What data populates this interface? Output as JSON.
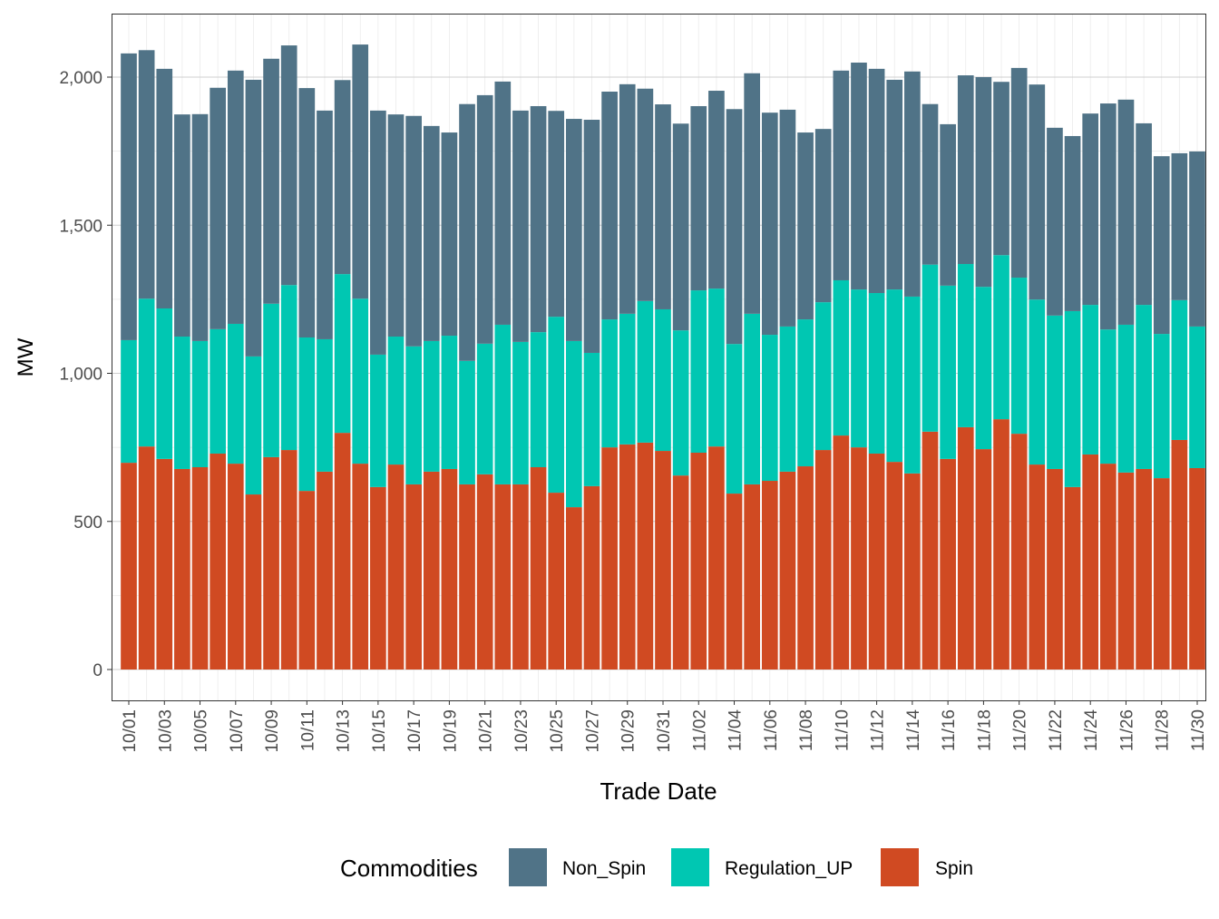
{
  "chart_data": {
    "type": "bar",
    "stacked": true,
    "xlabel": "Trade Date",
    "ylabel": "MW",
    "ylim": [
      0,
      2200
    ],
    "yticks": [
      0,
      500,
      1000,
      1500,
      2000
    ],
    "ytick_labels": [
      "0",
      "500",
      "1,000",
      "1,500",
      "2,000"
    ],
    "grid": true,
    "legend": {
      "title": "Commodities",
      "position": "bottom"
    },
    "categories": [
      "10/01",
      "10/02",
      "10/03",
      "10/04",
      "10/05",
      "10/06",
      "10/07",
      "10/08",
      "10/09",
      "10/10",
      "10/11",
      "10/12",
      "10/13",
      "10/14",
      "10/15",
      "10/16",
      "10/17",
      "10/18",
      "10/19",
      "10/20",
      "10/21",
      "10/22",
      "10/23",
      "10/24",
      "10/25",
      "10/26",
      "10/27",
      "10/28",
      "10/29",
      "10/30",
      "10/31",
      "11/01",
      "11/02",
      "11/03",
      "11/04",
      "11/05",
      "11/06",
      "11/07",
      "11/08",
      "11/09",
      "11/10",
      "11/11",
      "11/12",
      "11/13",
      "11/14",
      "11/15",
      "11/16",
      "11/17",
      "11/18",
      "11/19",
      "11/20",
      "11/21",
      "11/22",
      "11/23",
      "11/24",
      "11/25",
      "11/26",
      "11/27",
      "11/28",
      "11/29",
      "11/30"
    ],
    "xtick_labels": [
      "10/01",
      "10/03",
      "10/05",
      "10/07",
      "10/09",
      "10/11",
      "10/13",
      "10/15",
      "10/17",
      "10/19",
      "10/21",
      "10/23",
      "10/25",
      "10/27",
      "10/29",
      "10/31",
      "11/02",
      "11/04",
      "11/06",
      "11/08",
      "11/10",
      "11/12",
      "11/14",
      "11/16",
      "11/18",
      "11/20",
      "11/22",
      "11/24",
      "11/26",
      "11/28",
      "11/30"
    ],
    "series": [
      {
        "name": "Spin",
        "color": "#d04a22",
        "values": [
          698,
          753,
          711,
          677,
          683,
          729,
          695,
          591,
          717,
          741,
          603,
          668,
          799,
          695,
          616,
          692,
          625,
          668,
          677,
          625,
          659,
          625,
          625,
          683,
          597,
          548,
          619,
          750,
          760,
          766,
          738,
          655,
          732,
          753,
          594,
          625,
          637,
          668,
          686,
          741,
          790,
          750,
          729,
          701,
          662,
          803,
          711,
          818,
          744,
          845,
          796,
          692,
          677,
          616,
          726,
          695,
          665,
          677,
          646,
          775,
          680
        ]
      },
      {
        "name": "Regulation_UP",
        "color": "#00c7b2",
        "values": [
          414,
          499,
          508,
          447,
          426,
          420,
          472,
          466,
          518,
          557,
          518,
          447,
          536,
          557,
          447,
          432,
          466,
          441,
          450,
          417,
          441,
          539,
          481,
          456,
          594,
          561,
          450,
          432,
          441,
          478,
          478,
          490,
          548,
          533,
          505,
          576,
          493,
          490,
          496,
          499,
          524,
          533,
          542,
          582,
          597,
          564,
          585,
          551,
          548,
          554,
          527,
          557,
          518,
          594,
          505,
          453,
          499,
          554,
          487,
          472,
          478
        ]
      },
      {
        "name": "Non_Spin",
        "color": "#507387",
        "values": [
          968,
          839,
          809,
          750,
          766,
          815,
          855,
          934,
          827,
          809,
          842,
          772,
          655,
          858,
          824,
          750,
          778,
          726,
          686,
          867,
          839,
          821,
          781,
          763,
          695,
          750,
          787,
          769,
          775,
          717,
          692,
          698,
          622,
          668,
          793,
          812,
          750,
          732,
          631,
          585,
          708,
          766,
          757,
          708,
          760,
          542,
          545,
          637,
          708,
          585,
          708,
          726,
          634,
          591,
          646,
          763,
          760,
          613,
          600,
          496,
          591
        ]
      }
    ]
  }
}
